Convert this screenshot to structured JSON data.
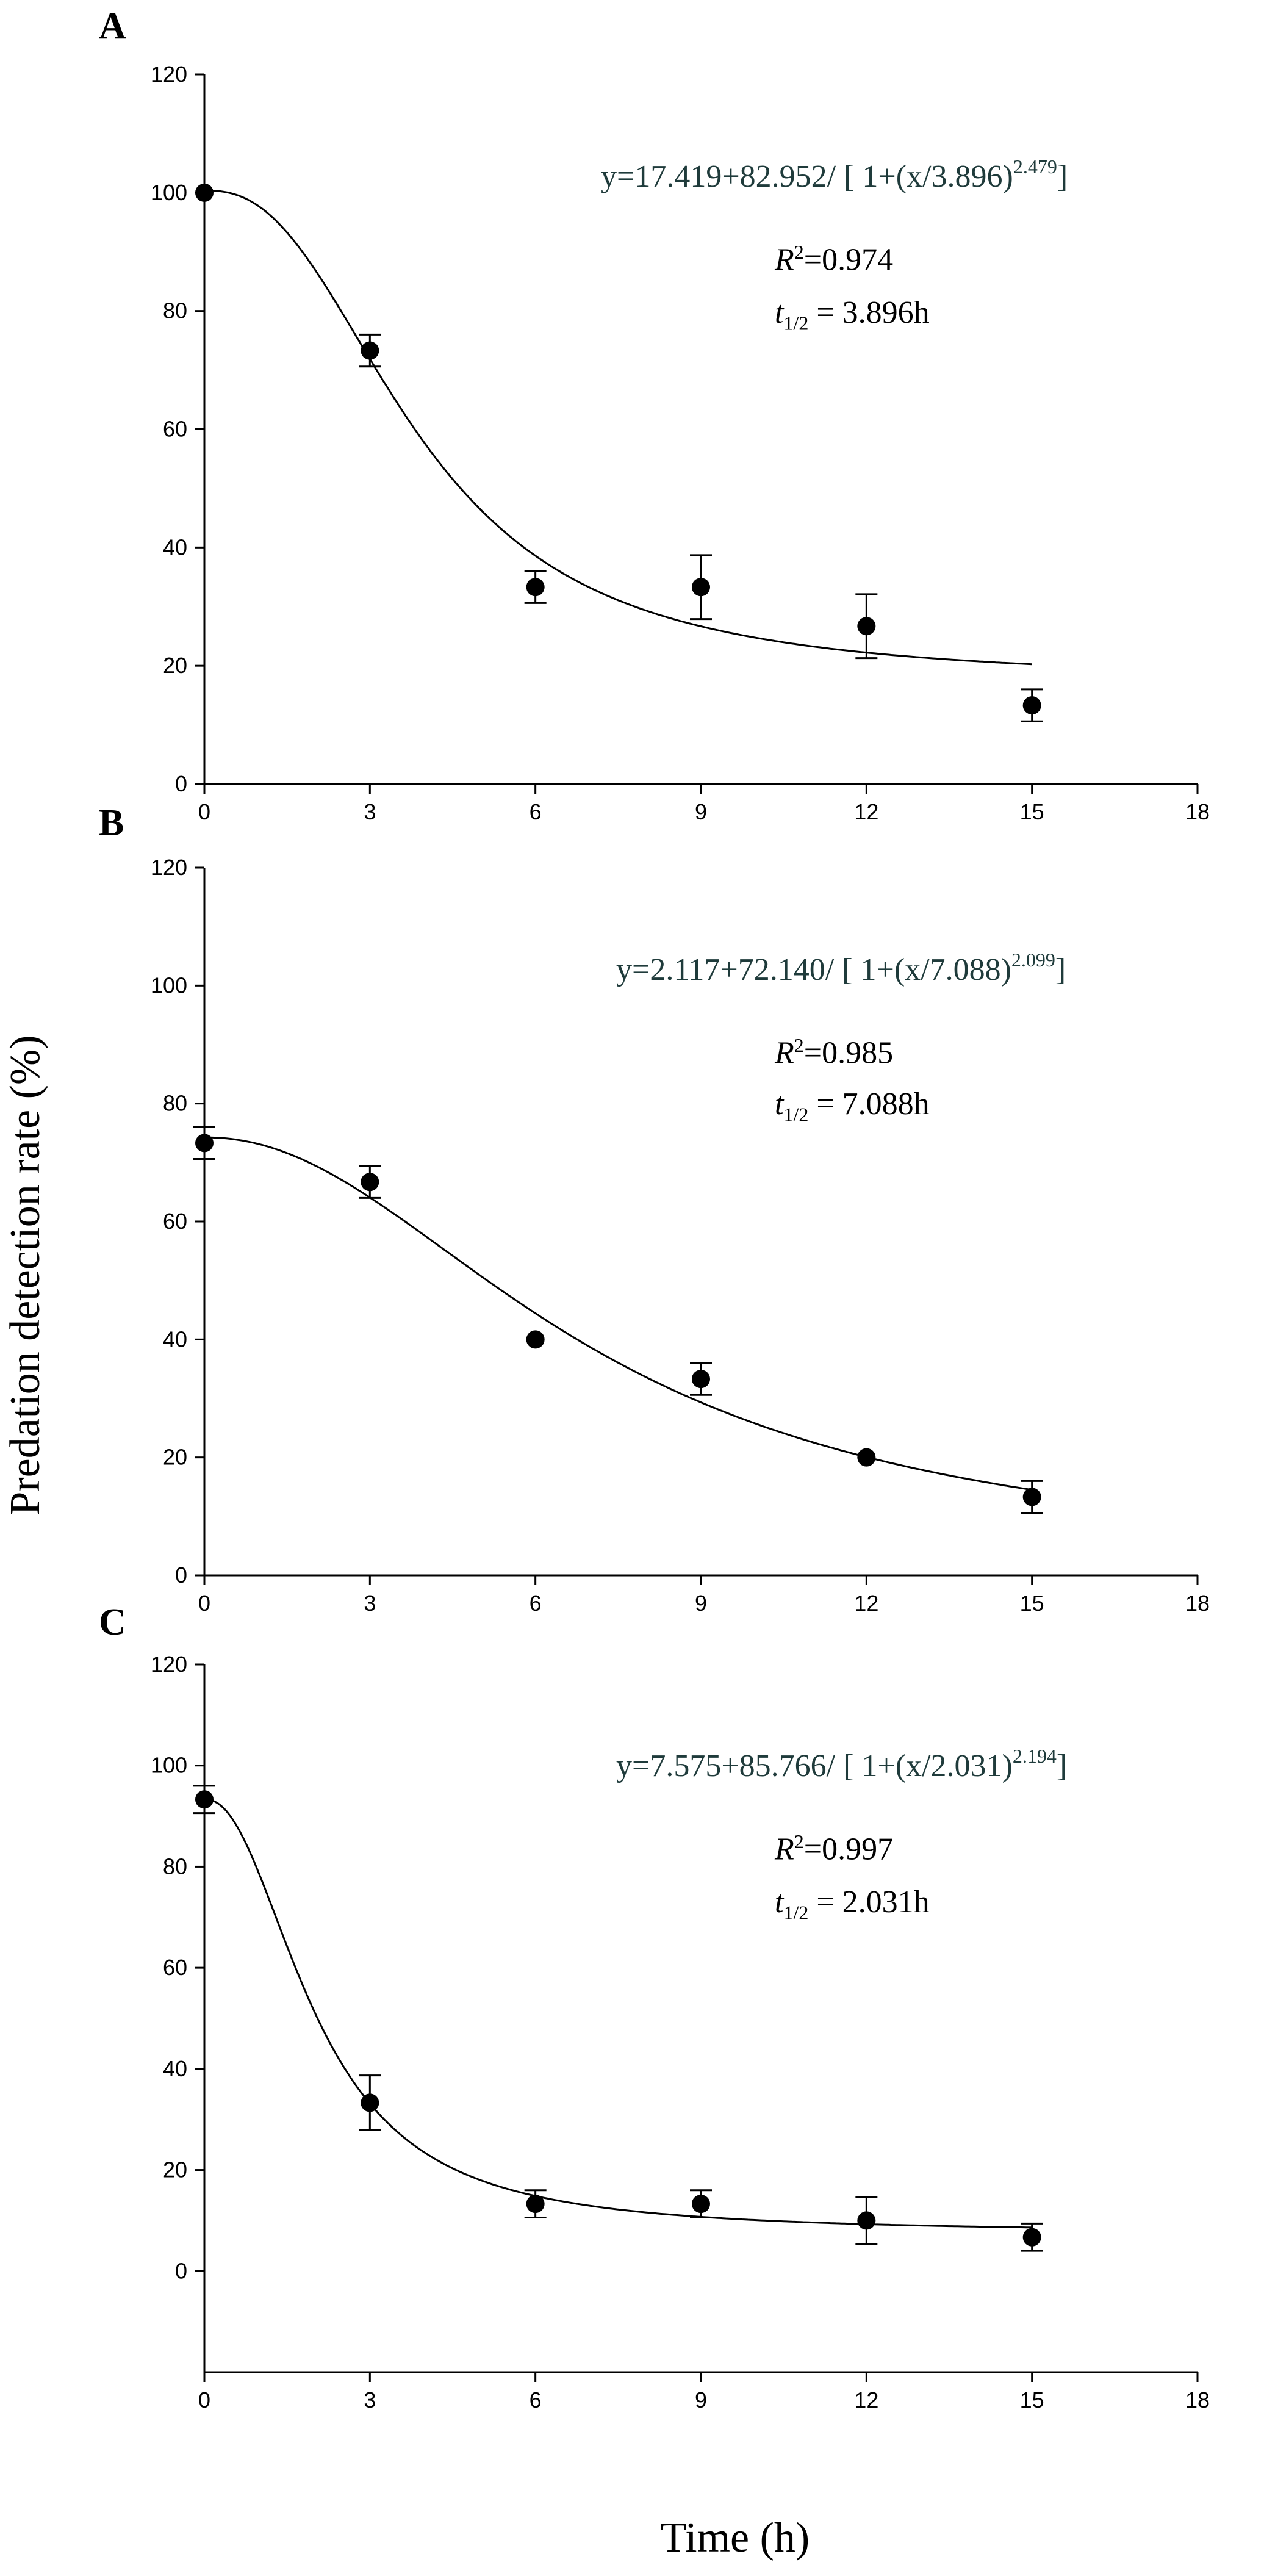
{
  "figure": {
    "y_axis_label": "Predation detection rate (%)",
    "x_axis_label": "Time (h)"
  },
  "chart_data": [
    {
      "panel": "A",
      "type": "scatter",
      "x": [
        0,
        3,
        6,
        9,
        12,
        15
      ],
      "values": [
        100,
        73.3,
        33.3,
        33.3,
        26.7,
        13.3
      ],
      "errors": [
        0,
        2.7,
        2.7,
        5.4,
        5.4,
        2.7
      ],
      "fit": {
        "a": 17.419,
        "b": 82.952,
        "x0": 3.896,
        "p": 2.479,
        "x_range": [
          0,
          15
        ]
      },
      "equation": {
        "base": "y=17.419+82.952/ [ 1+(x/3.896)",
        "exponent": "2.479",
        "close": "]"
      },
      "r2": {
        "label": "R",
        "sup": "2",
        "value": "=0.974"
      },
      "half_life": {
        "label": "t",
        "sub": "1/2",
        "value": " = 3.896h"
      },
      "xlim": [
        0,
        18
      ],
      "ylim": [
        0,
        120
      ],
      "xticks": [
        0,
        3,
        6,
        9,
        12,
        15,
        18
      ],
      "yticks": [
        0,
        20,
        40,
        60,
        80,
        100,
        120
      ]
    },
    {
      "panel": "B",
      "type": "scatter",
      "x": [
        0,
        3,
        6,
        9,
        12,
        15
      ],
      "values": [
        73.3,
        66.7,
        40,
        33.3,
        20,
        13.3
      ],
      "errors": [
        2.7,
        2.7,
        0,
        2.7,
        0,
        2.7
      ],
      "fit": {
        "a": 2.117,
        "b": 72.14,
        "x0": 7.088,
        "p": 2.099,
        "x_range": [
          0,
          15
        ]
      },
      "equation": {
        "base": "y=2.117+72.140/ [ 1+(x/7.088)",
        "exponent": "2.099",
        "close": "]"
      },
      "r2": {
        "label": "R",
        "sup": "2",
        "value": "=0.985"
      },
      "half_life": {
        "label": "t",
        "sub": "1/2",
        "value": " = 7.088h"
      },
      "xlim": [
        0,
        18
      ],
      "ylim": [
        0,
        120
      ],
      "xticks": [
        0,
        3,
        6,
        9,
        12,
        15,
        18
      ],
      "yticks": [
        0,
        20,
        40,
        60,
        80,
        100,
        120
      ]
    },
    {
      "panel": "C",
      "type": "scatter",
      "x": [
        0,
        3,
        6,
        9,
        12,
        15
      ],
      "values": [
        93.3,
        33.3,
        13.3,
        13.3,
        10,
        6.7
      ],
      "errors": [
        2.7,
        5.4,
        2.7,
        2.7,
        4.7,
        2.7
      ],
      "fit": {
        "a": 7.575,
        "b": 85.766,
        "x0": 2.031,
        "p": 2.194,
        "x_range": [
          0,
          15
        ]
      },
      "equation": {
        "base": "y=7.575+85.766/ [ 1+(x/2.031)",
        "exponent": "2.194",
        "close": "]"
      },
      "r2": {
        "label": "R",
        "sup": "2",
        "value": "=0.997"
      },
      "half_life": {
        "label": "t",
        "sub": "1/2",
        "value": " = 2.031h"
      },
      "xlim": [
        0,
        18
      ],
      "ylim": [
        -20,
        120
      ],
      "xticks": [
        0,
        3,
        6,
        9,
        12,
        15,
        18
      ],
      "yticks": [
        0,
        20,
        40,
        60,
        80,
        100,
        120
      ]
    }
  ]
}
